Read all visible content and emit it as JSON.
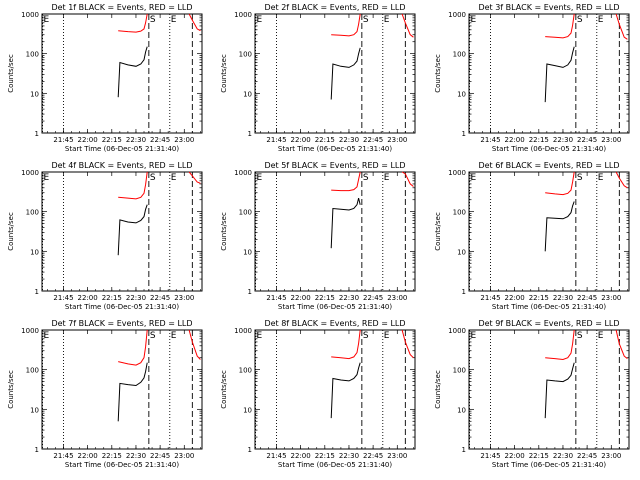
{
  "chart_data": {
    "type": "line",
    "scale_y": "log",
    "ylim": [
      1,
      1000
    ],
    "xlim": [
      "21:31:40",
      "23:11:00"
    ],
    "ylabel": "Counts/sec",
    "xlabel": "Start Time (06-Dec-05 21:31:40)",
    "ytick_labels": [
      "1",
      "10",
      "100",
      "1000"
    ],
    "xtick_labels": [
      "21:45",
      "22:00",
      "22:15",
      "22:30",
      "22:45",
      "23:00"
    ],
    "grid": false,
    "legend": "none",
    "colors": {
      "events": "#000000",
      "lld": "#ff0000",
      "axes": "#000000"
    },
    "markers": [
      {
        "label": "E",
        "time": "21:32",
        "style": "dotted"
      },
      {
        "label": "",
        "time": "21:45",
        "style": "dotted"
      },
      {
        "label": "S",
        "time": "22:38",
        "style": "dashed"
      },
      {
        "label": "E",
        "time": "22:51",
        "style": "dotted"
      },
      {
        "label": "",
        "time": "23:05",
        "style": "dashed"
      }
    ],
    "panels": [
      {
        "title": "Det 1f BLACK = Events, RED = LLD",
        "series": [
          {
            "x": [
              "22:19",
              "22:20",
              "22:25",
              "22:30",
              "22:33",
              "22:35",
              "22:36",
              "22:37"
            ],
            "y": [
              8,
              60,
              52,
              48,
              55,
              70,
              110,
              150
            ]
          },
          {
            "x": [
              "22:19",
              "22:25",
              "22:30",
              "22:33",
              "22:35",
              "22:36",
              "22:37",
              "23:03",
              "23:05",
              "23:08",
              "23:10"
            ],
            "y": [
              380,
              360,
              350,
              370,
              420,
              600,
              1000,
              1000,
              700,
              420,
              380
            ]
          }
        ]
      },
      {
        "title": "Det 2f BLACK = Events, RED = LLD",
        "series": [
          {
            "x": [
              "22:19",
              "22:20",
              "22:25",
              "22:30",
              "22:33",
              "22:35",
              "22:36",
              "22:37"
            ],
            "y": [
              7,
              55,
              48,
              45,
              52,
              65,
              100,
              140
            ]
          },
          {
            "x": [
              "22:19",
              "22:25",
              "22:30",
              "22:33",
              "22:35",
              "22:36",
              "22:37",
              "23:03",
              "23:05",
              "23:08",
              "23:10"
            ],
            "y": [
              300,
              290,
              280,
              300,
              360,
              550,
              1000,
              1000,
              600,
              300,
              260
            ]
          }
        ]
      },
      {
        "title": "Det 3f BLACK = Events, RED = LLD",
        "series": [
          {
            "x": [
              "22:19",
              "22:20",
              "22:25",
              "22:30",
              "22:33",
              "22:35",
              "22:36",
              "22:37"
            ],
            "y": [
              6,
              55,
              50,
              45,
              52,
              68,
              105,
              150
            ]
          },
          {
            "x": [
              "22:19",
              "22:25",
              "22:30",
              "22:33",
              "22:35",
              "22:36",
              "22:37",
              "23:03",
              "23:05",
              "23:08",
              "23:10"
            ],
            "y": [
              270,
              260,
              250,
              270,
              330,
              520,
              1000,
              1000,
              550,
              260,
              230
            ]
          }
        ]
      },
      {
        "title": "Det 4f BLACK = Events, RED = LLD",
        "series": [
          {
            "x": [
              "22:19",
              "22:20",
              "22:25",
              "22:30",
              "22:33",
              "22:35",
              "22:36",
              "22:37"
            ],
            "y": [
              8,
              62,
              55,
              52,
              60,
              75,
              115,
              150
            ]
          },
          {
            "x": [
              "22:19",
              "22:25",
              "22:30",
              "22:33",
              "22:35",
              "22:36",
              "22:37",
              "23:03",
              "23:05",
              "23:08",
              "23:10"
            ],
            "y": [
              230,
              220,
              210,
              230,
              290,
              480,
              1000,
              1000,
              800,
              560,
              520
            ]
          }
        ]
      },
      {
        "title": "Det 5f BLACK = Events, RED = LLD",
        "series": [
          {
            "x": [
              "22:19",
              "22:20",
              "22:25",
              "22:30",
              "22:33",
              "22:35",
              "22:36",
              "22:37"
            ],
            "y": [
              12,
              120,
              115,
              110,
              120,
              150,
              220,
              150
            ]
          },
          {
            "x": [
              "22:19",
              "22:25",
              "22:30",
              "22:33",
              "22:35",
              "22:36",
              "22:37",
              "23:03",
              "23:05",
              "23:08",
              "23:10"
            ],
            "y": [
              350,
              340,
              340,
              360,
              420,
              650,
              1000,
              1000,
              900,
              500,
              430
            ]
          }
        ]
      },
      {
        "title": "Det 6f BLACK = Events, RED = LLD",
        "series": [
          {
            "x": [
              "22:19",
              "22:20",
              "22:25",
              "22:30",
              "22:33",
              "22:35",
              "22:36",
              "22:37"
            ],
            "y": [
              10,
              70,
              68,
              66,
              75,
              95,
              140,
              180
            ]
          },
          {
            "x": [
              "22:19",
              "22:25",
              "22:30",
              "22:33",
              "22:35",
              "22:36",
              "22:37",
              "23:03",
              "23:05",
              "23:08",
              "23:10"
            ],
            "y": [
              300,
              280,
              270,
              290,
              350,
              560,
              1000,
              1000,
              700,
              450,
              400
            ]
          }
        ]
      },
      {
        "title": "Det 7f BLACK = Events, RED = LLD",
        "series": [
          {
            "x": [
              "22:19",
              "22:20",
              "22:25",
              "22:30",
              "22:33",
              "22:35",
              "22:36",
              "22:37"
            ],
            "y": [
              5,
              45,
              42,
              40,
              48,
              62,
              90,
              150
            ]
          },
          {
            "x": [
              "22:19",
              "22:25",
              "22:30",
              "22:33",
              "22:35",
              "22:36",
              "22:37",
              "23:03",
              "23:05",
              "23:08",
              "23:10"
            ],
            "y": [
              160,
              140,
              130,
              150,
              200,
              380,
              1000,
              1000,
              500,
              220,
              180
            ]
          }
        ]
      },
      {
        "title": "Det 8f BLACK = Events, RED = LLD",
        "series": [
          {
            "x": [
              "22:19",
              "22:20",
              "22:25",
              "22:30",
              "22:33",
              "22:35",
              "22:36",
              "22:37"
            ],
            "y": [
              6,
              60,
              55,
              52,
              60,
              75,
              110,
              150
            ]
          },
          {
            "x": [
              "22:19",
              "22:25",
              "22:30",
              "22:33",
              "22:35",
              "22:36",
              "22:37",
              "23:03",
              "23:05",
              "23:08",
              "23:10"
            ],
            "y": [
              210,
              200,
              190,
              210,
              270,
              460,
              1000,
              1000,
              500,
              240,
              200
            ]
          }
        ]
      },
      {
        "title": "Det 9f BLACK = Events, RED = LLD",
        "series": [
          {
            "x": [
              "22:19",
              "22:20",
              "22:25",
              "22:30",
              "22:33",
              "22:35",
              "22:36",
              "22:37"
            ],
            "y": [
              6,
              55,
              52,
              50,
              58,
              72,
              105,
              150
            ]
          },
          {
            "x": [
              "22:19",
              "22:25",
              "22:30",
              "22:33",
              "22:35",
              "22:36",
              "22:37",
              "23:03",
              "23:05",
              "23:08",
              "23:10"
            ],
            "y": [
              200,
              190,
              180,
              200,
              260,
              450,
              1000,
              1000,
              450,
              220,
              190
            ]
          }
        ]
      }
    ]
  }
}
